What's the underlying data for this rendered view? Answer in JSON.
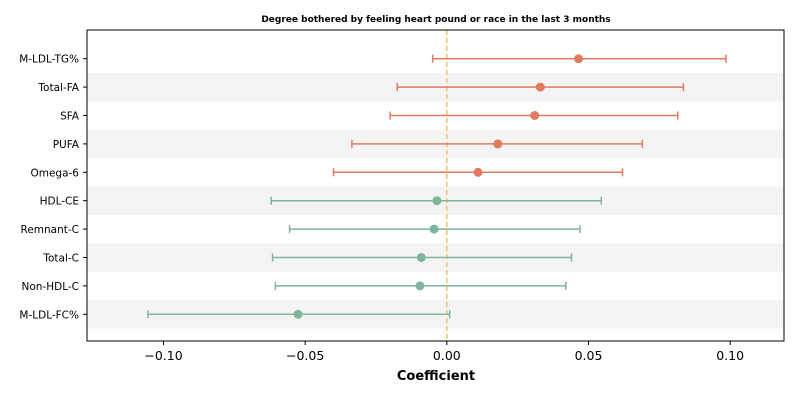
{
  "chart_data": {
    "type": "forest",
    "title": "Degree bothered by feeling heart pound or race in the last 3 months",
    "xlabel": "Coefficient",
    "ylabel": "",
    "xlim": [
      -0.127,
      0.119
    ],
    "xticks": [
      -0.1,
      -0.05,
      0.0,
      0.05,
      0.1
    ],
    "xtick_labels": [
      "−0.10",
      "−0.05",
      "0.00",
      "0.05",
      "0.10"
    ],
    "reference_line": {
      "x": 0.0,
      "color": "#f2c272",
      "style": "dashed"
    },
    "row_shading": "alternating",
    "colors": {
      "positive": "#e07b5f",
      "negative": "#7fb59a"
    },
    "rows": [
      {
        "label": "M-LDL-TG%",
        "coef": 0.0465,
        "ci_low": -0.005,
        "ci_high": 0.0985,
        "group": "positive"
      },
      {
        "label": "Total-FA",
        "coef": 0.033,
        "ci_low": -0.0175,
        "ci_high": 0.0835,
        "group": "positive"
      },
      {
        "label": "SFA",
        "coef": 0.031,
        "ci_low": -0.02,
        "ci_high": 0.0815,
        "group": "positive"
      },
      {
        "label": "PUFA",
        "coef": 0.018,
        "ci_low": -0.0335,
        "ci_high": 0.069,
        "group": "positive"
      },
      {
        "label": "Omega-6",
        "coef": 0.011,
        "ci_low": -0.04,
        "ci_high": 0.062,
        "group": "positive"
      },
      {
        "label": "HDL-CE",
        "coef": -0.0035,
        "ci_low": -0.062,
        "ci_high": 0.0545,
        "group": "negative"
      },
      {
        "label": "Remnant-C",
        "coef": -0.0045,
        "ci_low": -0.0555,
        "ci_high": 0.047,
        "group": "negative"
      },
      {
        "label": "Total-C",
        "coef": -0.009,
        "ci_low": -0.0615,
        "ci_high": 0.044,
        "group": "negative"
      },
      {
        "label": "Non-HDL-C",
        "coef": -0.0095,
        "ci_low": -0.0605,
        "ci_high": 0.042,
        "group": "negative"
      },
      {
        "label": "M-LDL-FC%",
        "coef": -0.0525,
        "ci_low": -0.1055,
        "ci_high": 0.001,
        "group": "negative"
      }
    ]
  }
}
